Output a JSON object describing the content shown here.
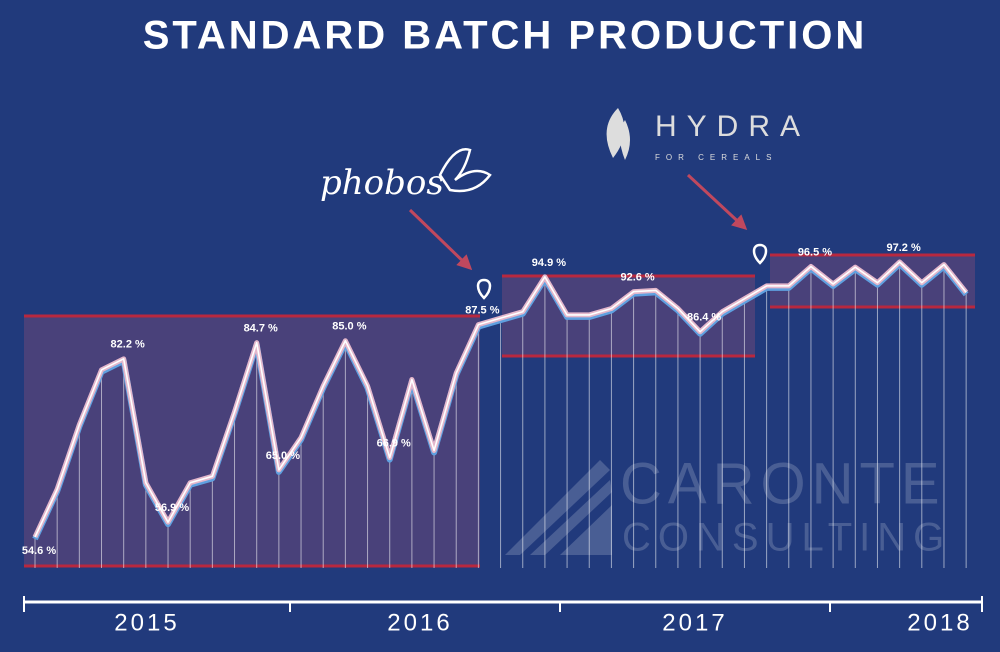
{
  "chart_data": {
    "type": "line",
    "title": "STANDARD BATCH PRODUCTION",
    "categories": [
      null,
      null,
      null,
      null,
      null,
      null,
      null,
      null,
      null,
      null,
      null,
      null,
      null,
      null,
      null,
      null,
      null,
      null,
      null,
      null,
      null,
      null,
      null,
      null,
      null,
      null,
      null,
      null,
      null,
      null,
      null,
      null,
      null,
      null,
      null,
      null,
      null,
      null,
      null,
      null,
      null,
      null,
      null
    ],
    "year_labels": [
      "2015",
      "2016",
      "2017",
      "2018"
    ],
    "color": "#ffffff",
    "values": [
      54.6,
      62,
      72,
      80.5,
      82.2,
      63,
      56.9,
      63,
      64,
      74,
      84.7,
      65.0,
      70,
      78,
      85.0,
      78,
      66.9,
      79,
      68,
      80,
      87.5,
      88.5,
      89.5,
      94.9,
      89,
      89,
      90,
      92.6,
      92.8,
      90,
      86.4,
      89.5,
      91.5,
      93.5,
      93.5,
      96.5,
      93.8,
      96.4,
      94,
      97.2,
      94,
      96.8,
      92.5
    ],
    "value_labels": [
      "54.6 %",
      null,
      null,
      null,
      "82.2 %",
      null,
      "56.9 %",
      null,
      null,
      null,
      "84.7 %",
      "65.0 %",
      null,
      null,
      "85.0 %",
      null,
      "66.9 %",
      null,
      null,
      null,
      "87.5 %",
      null,
      null,
      "94.9 %",
      null,
      null,
      null,
      "92.6 %",
      null,
      null,
      "86.4 %",
      null,
      null,
      null,
      null,
      "96.5 %",
      null,
      null,
      null,
      "97.2 %",
      null,
      null,
      null
    ],
    "annotations": [
      "phobos",
      "HYDRA",
      "FOR CEREALS",
      "CARONTE",
      "CONSULTING"
    ]
  }
}
